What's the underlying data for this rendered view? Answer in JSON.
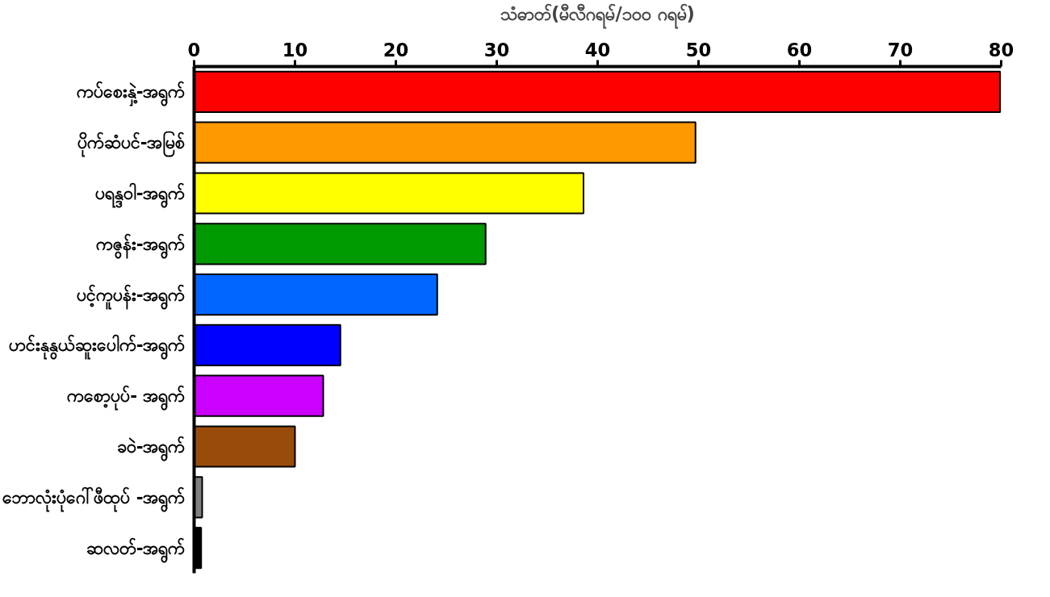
{
  "chart_data": {
    "type": "bar",
    "orientation": "horizontal",
    "xlabel": "သံဓာတ်(မီလီဂရမ်/၁၀၀ ဂရမ်)",
    "categories": [
      "ကပ်စေးနှဲ့-အရွက်",
      "ပိုက်ဆံပင်-အမြစ်",
      "ပရန္ဒဝါ-အရွက်",
      "ကဇွန်း-အရွက်",
      "ပင့်ကူပန်း-အရွက်",
      "ဟင်းနုနွယ်ဆူးပေါက်-အရွက်",
      "ကစော့ပုပ်- အရွက်",
      "ခဝဲ-အရွက်",
      "ဘောလုံးပုံဂေါ်ဖီထုပ် -အရွက်",
      "ဆလတ်-အရွက်"
    ],
    "values": [
      79.9,
      49.7,
      38.6,
      28.9,
      24.1,
      14.5,
      12.8,
      10.0,
      0.8,
      0.7
    ],
    "colors": [
      "#ff0000",
      "#ff9900",
      "#ffff00",
      "#009900",
      "#0066ff",
      "#0000ff",
      "#cc00ff",
      "#994c0a",
      "#808080",
      "#000000"
    ],
    "xlim": [
      0,
      80
    ],
    "xticks": [
      0,
      10,
      20,
      30,
      40,
      50,
      60,
      70,
      80
    ],
    "grid": false
  }
}
